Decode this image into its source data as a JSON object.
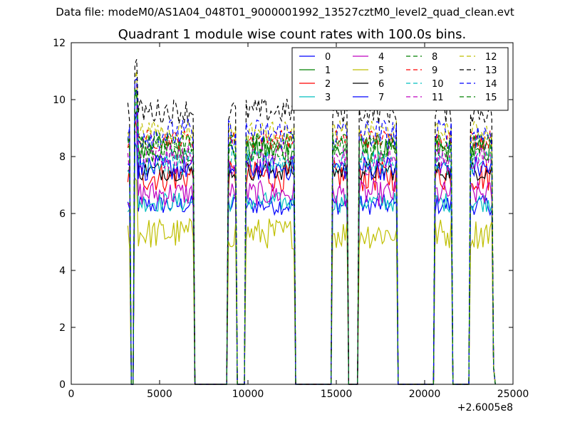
{
  "figure": {
    "suptitle": "Data file: modeM0/AS1A04_048T01_9000001992_13527cztM0_level2_quad_clean.evt"
  },
  "chart_data": {
    "type": "line",
    "title": "Quadrant 1 module wise count rates with 100.0s bins.",
    "xlabel": "",
    "ylabel": "",
    "x_offset_label": "+2.6005e8",
    "xlim": [
      0,
      25000
    ],
    "ylim": [
      0,
      12
    ],
    "xticks": [
      0,
      5000,
      10000,
      15000,
      20000,
      25000
    ],
    "yticks": [
      0,
      2,
      4,
      6,
      8,
      10,
      12
    ],
    "grid": false,
    "legend_position": "top-right",
    "legend_columns": 4,
    "gaps": [
      [
        3400,
        3600
      ],
      [
        6950,
        8850
      ],
      [
        9350,
        9850
      ],
      [
        12650,
        14750
      ],
      [
        15700,
        16250
      ],
      [
        18500,
        20550
      ],
      [
        21600,
        22500
      ]
    ],
    "segments": [
      {
        "start": 3200,
        "end": 3350
      },
      {
        "start": 3600,
        "end": 6900
      },
      {
        "start": 8900,
        "end": 9300
      },
      {
        "start": 9900,
        "end": 12600
      },
      {
        "start": 14800,
        "end": 15650
      },
      {
        "start": 16300,
        "end": 18450
      },
      {
        "start": 20600,
        "end": 21550
      },
      {
        "start": 22550,
        "end": 23950
      }
    ],
    "series": [
      {
        "name": "0",
        "color": "#0000ff",
        "dash": "solid",
        "level": 6.3
      },
      {
        "name": "1",
        "color": "#008000",
        "dash": "solid",
        "level": 8.2
      },
      {
        "name": "2",
        "color": "#ff0000",
        "dash": "solid",
        "level": 7.3
      },
      {
        "name": "3",
        "color": "#00bfbf",
        "dash": "solid",
        "level": 6.4
      },
      {
        "name": "4",
        "color": "#bf00bf",
        "dash": "solid",
        "level": 6.7
      },
      {
        "name": "5",
        "color": "#bfbf00",
        "dash": "solid",
        "level": 5.3
      },
      {
        "name": "6",
        "color": "#000000",
        "dash": "solid",
        "level": 7.5
      },
      {
        "name": "7",
        "color": "#0000ff",
        "dash": "solid",
        "level": 7.6
      },
      {
        "name": "8",
        "color": "#008000",
        "dash": "dashed",
        "level": 8.3
      },
      {
        "name": "9",
        "color": "#ff0000",
        "dash": "dashed",
        "level": 8.6
      },
      {
        "name": "10",
        "color": "#00bfbf",
        "dash": "dashed",
        "level": 7.8
      },
      {
        "name": "11",
        "color": "#bf00bf",
        "dash": "dashed",
        "level": 7.9
      },
      {
        "name": "12",
        "color": "#bfbf00",
        "dash": "dashed",
        "level": 8.9
      },
      {
        "name": "13",
        "color": "#000000",
        "dash": "dashed",
        "level": 9.6
      },
      {
        "name": "14",
        "color": "#0000ff",
        "dash": "dashed",
        "level": 8.8
      },
      {
        "name": "15",
        "color": "#008000",
        "dash": "dashed",
        "level": 8.5
      }
    ]
  }
}
